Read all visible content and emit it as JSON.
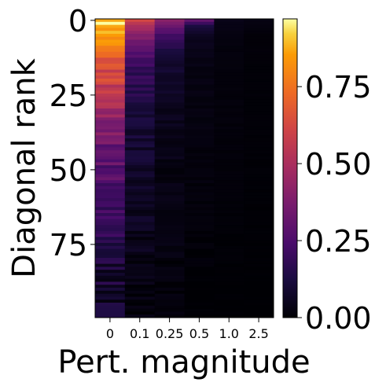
{
  "chart_data": {
    "type": "heatmap",
    "xlabel": "Pert. magnitude",
    "ylabel": "Diagonal rank",
    "x_categories": [
      "0",
      "0.1",
      "0.25",
      "0.5",
      "1.0",
      "2.5"
    ],
    "y_ticks": [
      {
        "value": 0,
        "label": "0"
      },
      {
        "value": 25,
        "label": "25"
      },
      {
        "value": 50,
        "label": "50"
      },
      {
        "value": 75,
        "label": "75"
      }
    ],
    "rows": 100,
    "colormap": "inferno",
    "colorbar": {
      "vmin": 0.0,
      "vmax": 0.97,
      "ticks": [
        {
          "value": 0.0,
          "label": "0.00"
        },
        {
          "value": 0.25,
          "label": "0.25"
        },
        {
          "value": 0.5,
          "label": "0.50"
        },
        {
          "value": 0.75,
          "label": "0.75"
        }
      ]
    },
    "column_profiles": [
      {
        "x": "0",
        "knots": [
          [
            0,
            0.95
          ],
          [
            3,
            0.88
          ],
          [
            8,
            0.8
          ],
          [
            12,
            0.68
          ],
          [
            20,
            0.6
          ],
          [
            30,
            0.45
          ],
          [
            40,
            0.34
          ],
          [
            55,
            0.25
          ],
          [
            70,
            0.16
          ],
          [
            85,
            0.1
          ],
          [
            99,
            0.07
          ]
        ],
        "jitter": 0.08
      },
      {
        "x": "0.1",
        "knots": [
          [
            0,
            0.6
          ],
          [
            3,
            0.5
          ],
          [
            8,
            0.32
          ],
          [
            15,
            0.2
          ],
          [
            30,
            0.12
          ],
          [
            50,
            0.07
          ],
          [
            75,
            0.04
          ],
          [
            99,
            0.02
          ]
        ],
        "jitter": 0.04
      },
      {
        "x": "0.25",
        "knots": [
          [
            0,
            0.4
          ],
          [
            3,
            0.28
          ],
          [
            8,
            0.16
          ],
          [
            15,
            0.09
          ],
          [
            30,
            0.05
          ],
          [
            50,
            0.03
          ],
          [
            99,
            0.01
          ]
        ],
        "jitter": 0.02
      },
      {
        "x": "0.5",
        "knots": [
          [
            0,
            0.3
          ],
          [
            2,
            0.12
          ],
          [
            6,
            0.05
          ],
          [
            15,
            0.03
          ],
          [
            99,
            0.0
          ]
        ],
        "jitter": 0.01
      },
      {
        "x": "1.0",
        "knots": [
          [
            0,
            0.04
          ],
          [
            5,
            0.02
          ],
          [
            99,
            0.0
          ]
        ],
        "jitter": 0.005
      },
      {
        "x": "2.5",
        "knots": [
          [
            0,
            0.03
          ],
          [
            5,
            0.01
          ],
          [
            99,
            0.0
          ]
        ],
        "jitter": 0.003
      }
    ]
  }
}
